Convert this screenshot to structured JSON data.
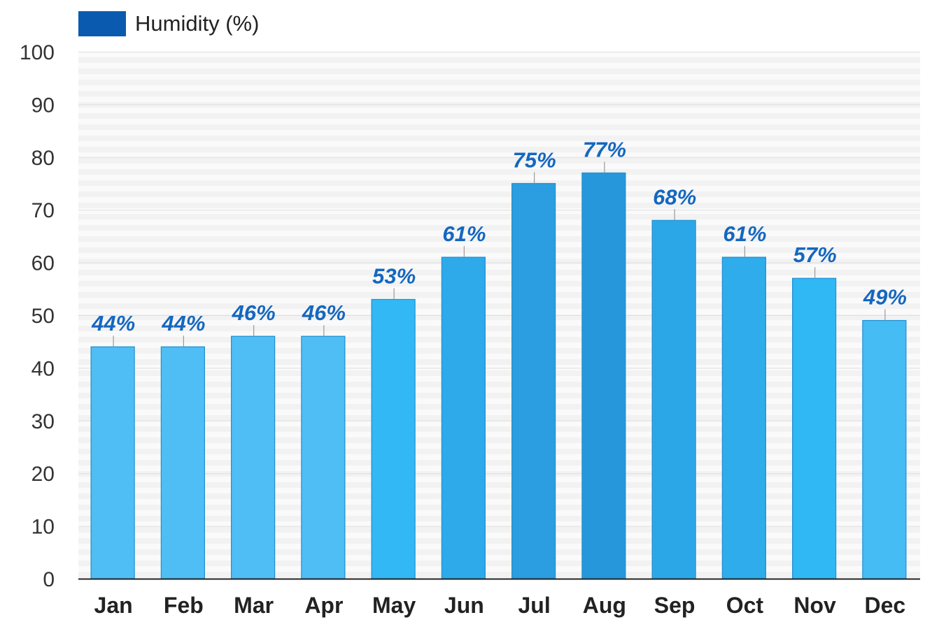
{
  "chart_data": {
    "type": "bar",
    "legend": {
      "label": "Humidity (%)",
      "color": "#0a5ab0",
      "position": "top-left"
    },
    "categories": [
      "Jan",
      "Feb",
      "Mar",
      "Apr",
      "May",
      "Jun",
      "Jul",
      "Aug",
      "Sep",
      "Oct",
      "Nov",
      "Dec"
    ],
    "series": [
      {
        "name": "Humidity (%)",
        "values": [
          44,
          44,
          46,
          46,
          53,
          61,
          75,
          77,
          68,
          61,
          57,
          49
        ],
        "labels": [
          "44%",
          "44%",
          "46%",
          "46%",
          "53%",
          "61%",
          "75%",
          "77%",
          "68%",
          "61%",
          "57%",
          "49%"
        ],
        "colors": [
          "#4fbef5",
          "#4fbef5",
          "#4fbef5",
          "#4fbef5",
          "#32b8f4",
          "#2eaaea",
          "#2a9ee0",
          "#2797dc",
          "#2ba7e8",
          "#2eacec",
          "#2fb8f4",
          "#45bcf4"
        ]
      }
    ],
    "ylim": [
      0,
      100
    ],
    "yticks": [
      "0",
      "10",
      "20",
      "30",
      "40",
      "50",
      "60",
      "70",
      "80",
      "90",
      "100"
    ],
    "grid": true
  }
}
